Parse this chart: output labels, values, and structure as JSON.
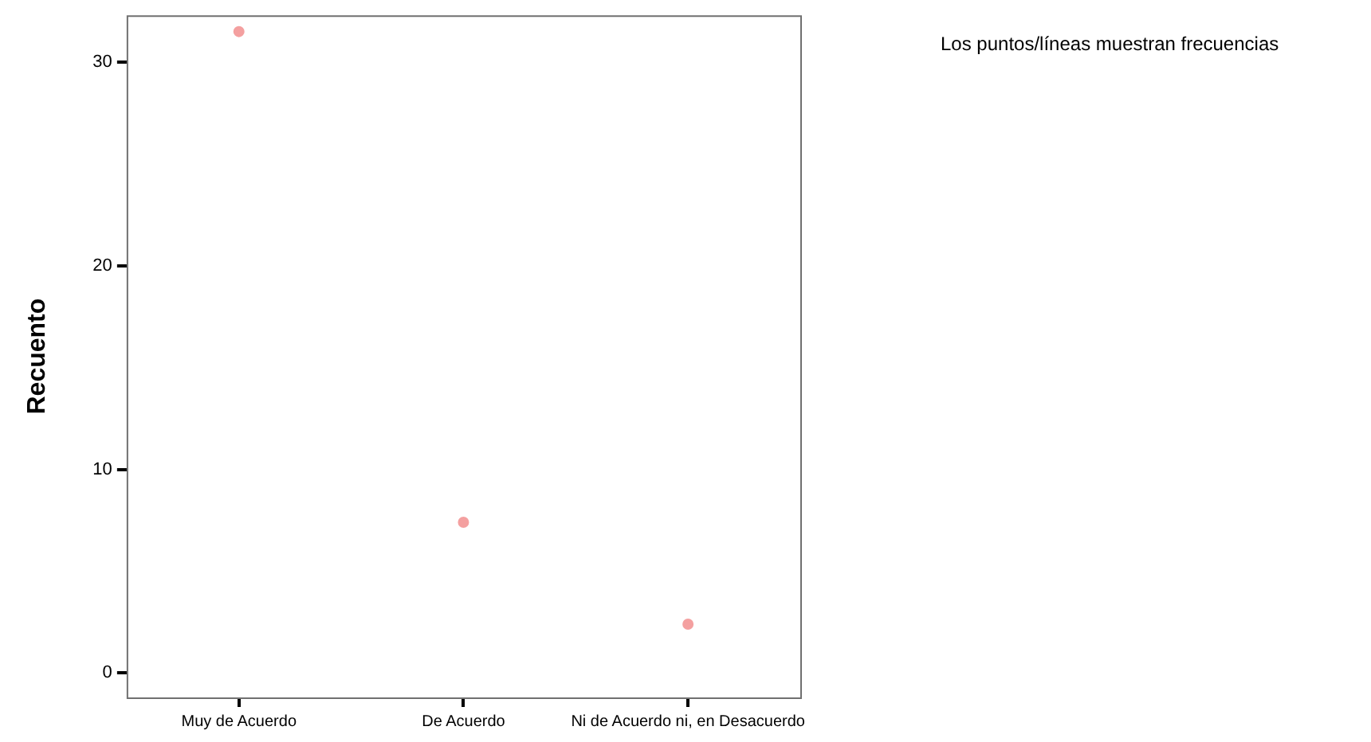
{
  "chart_data": {
    "type": "scatter",
    "ylabel": "Recuento",
    "categories": [
      "Muy de Acuerdo",
      "De Acuerdo",
      "Ni de Acuerdo ni, en Desacuerdo"
    ],
    "series": [
      {
        "color": "#f4a0a0",
        "values": [
          31.5,
          7.4,
          2.4
        ]
      }
    ],
    "ylim": [
      -1.2,
      32.3
    ],
    "yticks": [
      0,
      10,
      20,
      30
    ],
    "grid": false,
    "legend": false,
    "marker": "circle",
    "annotations": [
      "Los puntos/líneas muestran frecuencias"
    ]
  }
}
